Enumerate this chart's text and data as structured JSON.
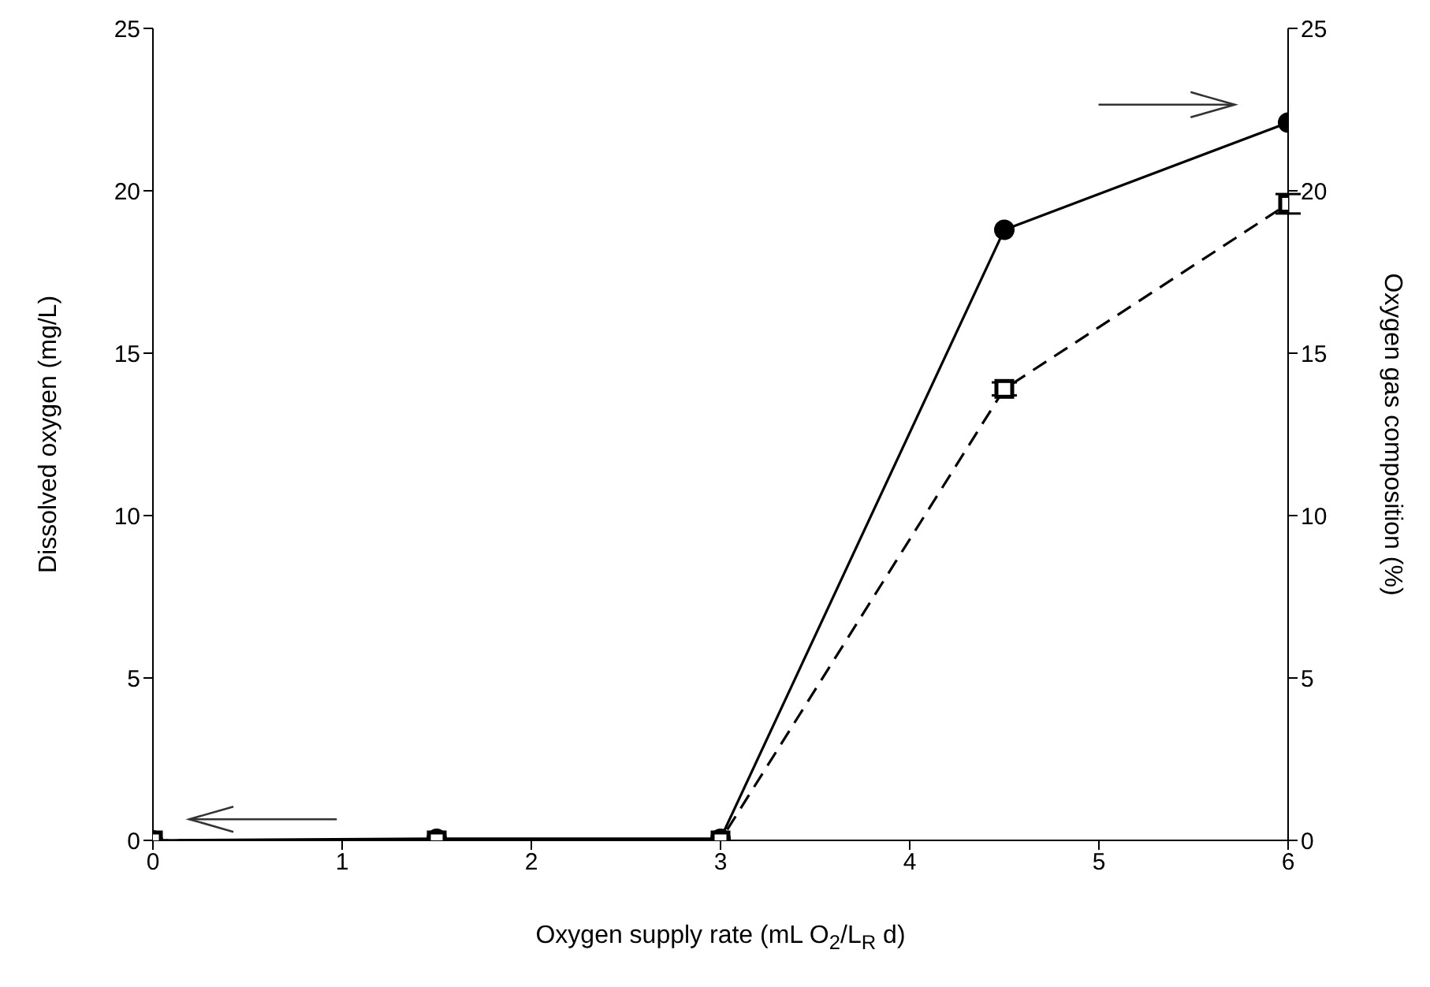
{
  "chart_data": {
    "type": "line",
    "xlabel": "Oxygen supply rate (mL O$_{2}$/L$_{R}$ d)",
    "ylabel": "Dissolved oxygen (mg/L)",
    "y2label": "Oxygen gas composition (%)",
    "x": [
      0,
      1.5,
      3,
      4.5,
      6
    ],
    "series": [
      {
        "color": "#000000",
        "values": [
          0,
          0.05,
          0.05,
          18.8,
          22.1
        ],
        "axis": "y2",
        "marker": "circle",
        "line_style": "solid"
      },
      {
        "color": "#000000",
        "values": [
          0,
          0,
          0,
          13.9,
          19.6
        ],
        "errors": [
          null,
          null,
          null,
          0.2,
          0.3
        ],
        "axis": "y",
        "marker": "square",
        "line_style": "dashed"
      }
    ],
    "xlim": [
      0,
      6
    ],
    "xticks": [
      0,
      1,
      2,
      3,
      4,
      5,
      6
    ],
    "ylim": [
      0,
      25
    ],
    "yticks": [
      0,
      5,
      10,
      15,
      20,
      25
    ],
    "y2lim": [
      0,
      25
    ],
    "y2ticks": [
      0,
      5,
      10,
      15,
      20,
      25
    ]
  }
}
